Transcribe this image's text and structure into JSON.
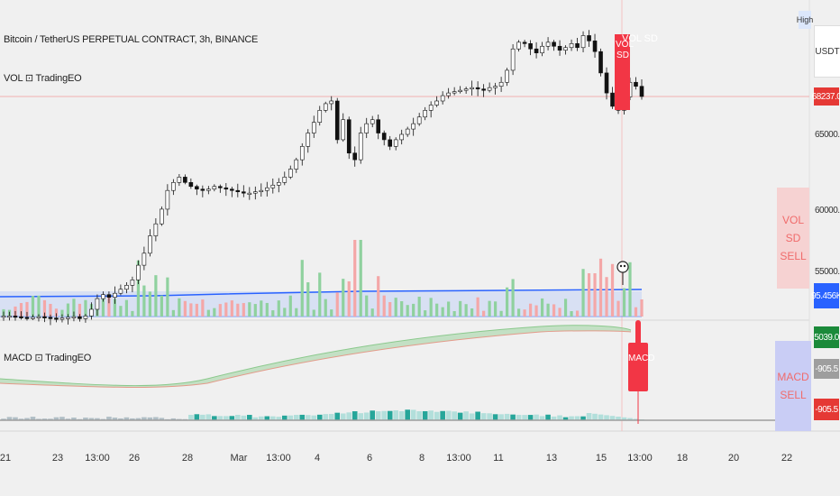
{
  "header": {
    "symbol_title": "Bitcoin / TetherUS PERPETUAL CONTRACT, 3h, BINANCE",
    "vol_indicator": "VOL ⊡ TradingEO",
    "macd_indicator": "MACD ⊡ TradingEO"
  },
  "price_axis": {
    "high_label": "High",
    "currency": "USDT",
    "current_price": "68237.0",
    "ticks": [
      "65000.0",
      "60000.0",
      "55000.0"
    ]
  },
  "volume_axis": {
    "value": "95.456K"
  },
  "macd_axis": {
    "values": [
      "5039.0",
      "-905.5",
      "-905.5"
    ]
  },
  "signals": {
    "vol_sd_on_chart": "VOL SD",
    "vol_sd_panel": [
      "VOL SD",
      "SELL"
    ],
    "macd_on_chart": "MACD",
    "macd_panel": [
      "MACD",
      "SELL"
    ]
  },
  "time_axis": {
    "labels": [
      "21",
      "23",
      "13:00",
      "26",
      "28",
      "Mar",
      "13:00",
      "4",
      "6",
      "8",
      "13:00",
      "11",
      "13",
      "15",
      "13:00",
      "18",
      "20",
      "22"
    ]
  },
  "colors": {
    "up": "#26a69a",
    "down": "#ef5350",
    "vol_band": "#2962ff",
    "sell_red": "#f23645",
    "macd_fill": "#a5d6a7"
  },
  "chart_data": {
    "type": "candlestick",
    "symbol": "BTCUSDT.P",
    "interval": "3h",
    "last_price": 68237.0,
    "price_ticks": [
      65000,
      60000,
      55000
    ],
    "price_close_path": [
      51800,
      51800,
      51750,
      51700,
      51650,
      51700,
      51750,
      51700,
      51650,
      51600,
      51650,
      51700,
      51750,
      51600,
      51800,
      52300,
      53100,
      53400,
      53200,
      53500,
      53800,
      54100,
      54500,
      55600,
      56500,
      57800,
      58700,
      59800,
      61200,
      61800,
      62200,
      61800,
      61500,
      61300,
      61200,
      61300,
      61500,
      61400,
      61300,
      61200,
      61100,
      61000,
      61000,
      61100,
      61200,
      61400,
      61600,
      61800,
      62200,
      62800,
      63500,
      64500,
      65500,
      66300,
      67200,
      67700,
      67900,
      65000,
      66500,
      64000,
      63500,
      65500,
      66200,
      66500,
      65500,
      65000,
      64500,
      65000,
      65400,
      65800,
      66200,
      66700,
      67200,
      67600,
      67900,
      68300,
      68500,
      68600,
      68700,
      68800,
      68900,
      68800,
      68700,
      68900,
      69000,
      69300,
      70200,
      71800,
      72300,
      72200,
      71800,
      71500,
      72000,
      72300,
      72000,
      71700,
      71900,
      72200,
      71900,
      72800,
      72400,
      71600,
      70000,
      68500,
      67500,
      67200,
      68200,
      69300,
      69000,
      68237
    ],
    "volume_band_upper": 95456,
    "macd_signal": "SELL",
    "vol_sd_signal": "SELL"
  }
}
